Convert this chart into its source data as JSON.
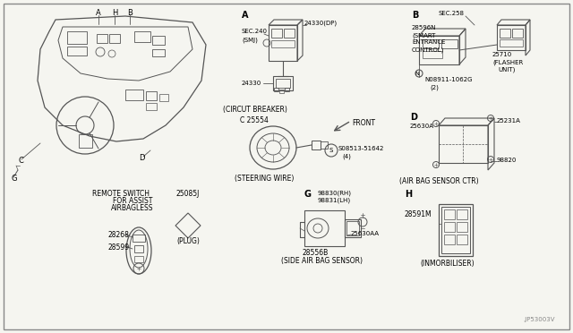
{
  "bg_color": "#f5f5f0",
  "line_color": "#555555",
  "text_color": "#000000",
  "figsize": [
    6.4,
    3.72
  ],
  "dpi": 100,
  "watermark": ".JP53003V",
  "sections": {
    "A_label": "A",
    "A_title": "(CIRCUT BREAKER)",
    "A_sec": "SEC.240",
    "A_smj": "(SMJ)",
    "A_part1": "24330(DP)",
    "A_part2": "24330",
    "B_label": "B",
    "B_sec": "SEC.258",
    "B_part1": "28596N",
    "B_part2": "(SMART",
    "B_part3": "ENTRANCE",
    "B_part4": "CONTROL)",
    "B_part5": "25710",
    "B_part6": "(FLASHER",
    "B_part7": "UNIT)",
    "B_screw": "N08911-1062G",
    "B_screw2": "(2)",
    "C_label": "C 25554",
    "C_title": "(STEERING WIRE)",
    "C_screw": "S08513-51642",
    "C_screw2": "(4)",
    "C_front": "FRONT",
    "D_label": "D",
    "D_title": "(AIR BAG SENSOR CTR)",
    "D_part1": "25630A",
    "D_part2": "25231A",
    "D_part3": "98820",
    "G_label": "G",
    "G_part1": "98830(RH)",
    "G_part2": "98831(LH)",
    "G_part3": "25630AA",
    "G_part4": "28556B",
    "G_title": "(SIDE AIR BAG SENSOR)",
    "H_label": "H",
    "H_title": "(INMORBILISER)",
    "H_part1": "28591M",
    "remote_title1": "REMOTE SWITCH",
    "remote_title2": "FOR ASSIST",
    "remote_title3": "AIRBAGLESS",
    "remote_part1": "28268",
    "remote_part2": "28599",
    "plug_part1": "25085J",
    "plug_part2": "(PLUG)"
  }
}
